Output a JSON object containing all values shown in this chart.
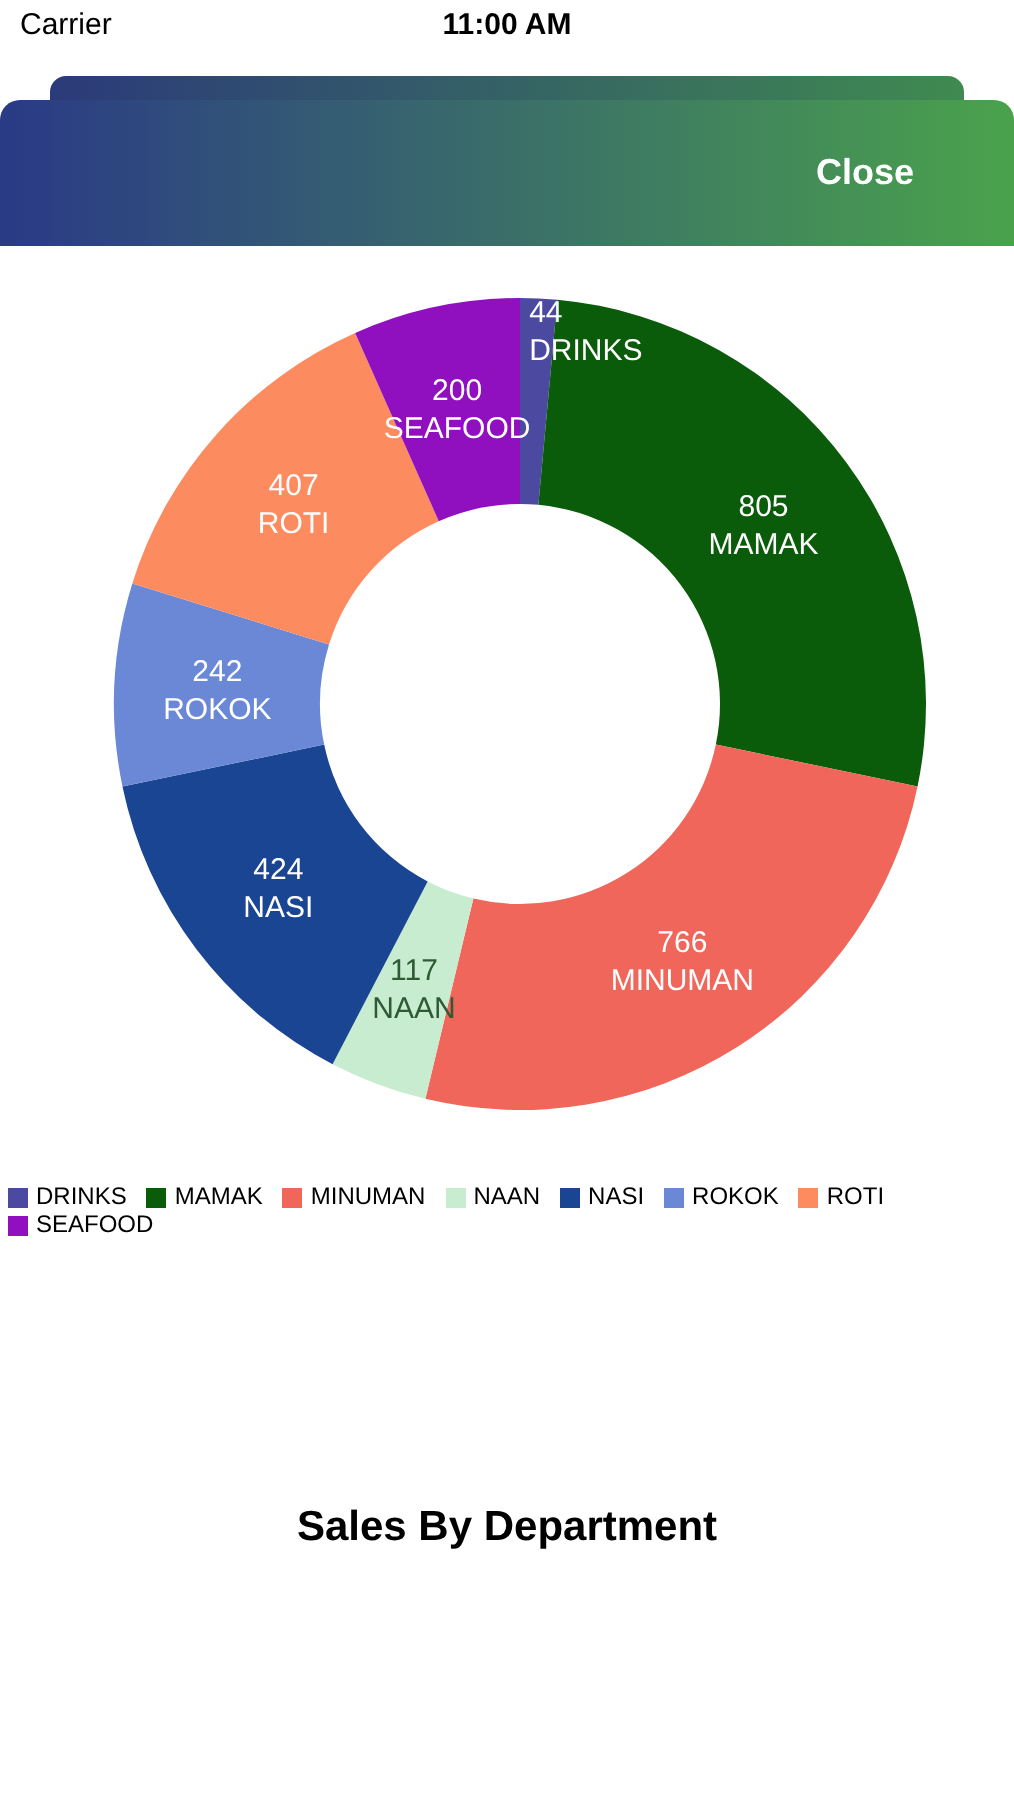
{
  "chart_data": {
    "type": "donut",
    "title": "Sales By Department",
    "categories": [
      "DRINKS",
      "MAMAK",
      "MINUMAN",
      "NAAN",
      "NASI",
      "ROKOK",
      "ROTI",
      "SEAFOOD"
    ],
    "values": [
      44,
      805,
      766,
      117,
      424,
      242,
      407,
      200
    ],
    "colors": [
      "#4b4aa0",
      "#0a5c0a",
      "#f0665a",
      "#c8ecd0",
      "#1a4592",
      "#6a88d6",
      "#fc8c60",
      "#9010c0"
    ],
    "data_labels": true,
    "legend": "bottom",
    "annotations": [
      "Carrier",
      "11:00 AM",
      "Close"
    ]
  }
}
